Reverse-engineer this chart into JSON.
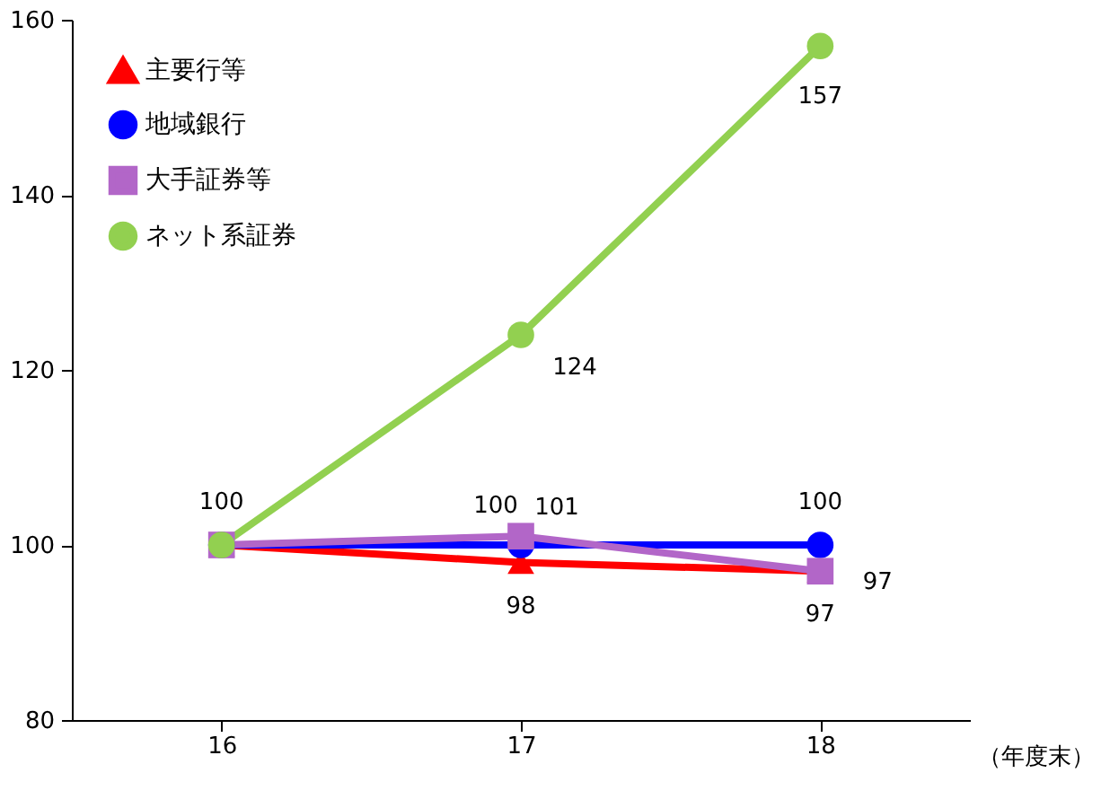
{
  "chart_data": {
    "type": "line",
    "xlabel": "（年度末）",
    "categories": [
      "16",
      "17",
      "18"
    ],
    "ylim": [
      80,
      160
    ],
    "yticks": [
      80,
      100,
      120,
      140,
      160
    ],
    "grid": false,
    "legend": "top left",
    "series": [
      {
        "name": "主要行等",
        "color": "#ff0000",
        "marker": "triangle",
        "values": [
          100,
          98,
          97
        ],
        "value_labels": [
          null,
          "98",
          "97"
        ]
      },
      {
        "name": "地域銀行",
        "color": "#0000ff",
        "marker": "circle",
        "values": [
          100,
          100,
          100
        ],
        "value_labels": [
          null,
          "100",
          "100"
        ]
      },
      {
        "name": "大手証券等",
        "color": "#b266c8",
        "marker": "square",
        "values": [
          100,
          101,
          97
        ],
        "value_labels": [
          null,
          "101",
          "97"
        ]
      },
      {
        "name": "ネット系証券",
        "color": "#92d050",
        "marker": "circle",
        "values": [
          100,
          124,
          157
        ],
        "value_labels": [
          "100",
          "124",
          "157"
        ]
      }
    ]
  }
}
